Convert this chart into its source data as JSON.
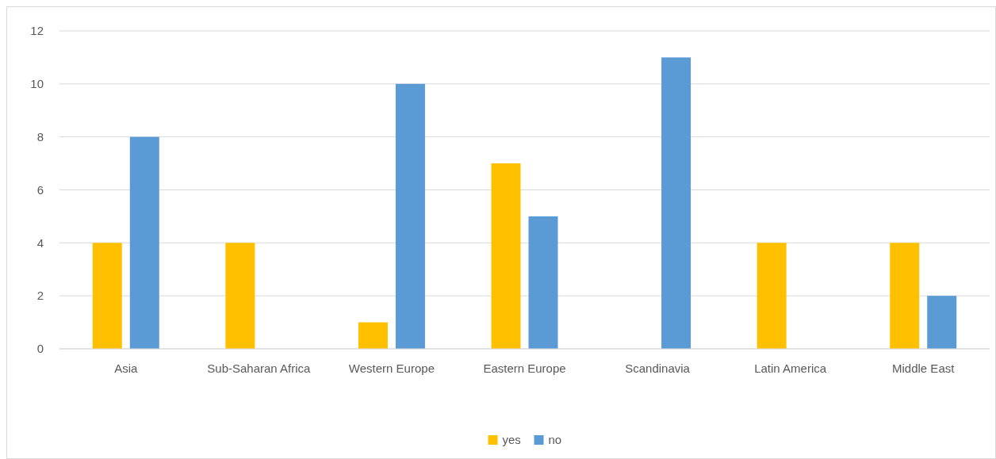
{
  "chart_data": {
    "type": "bar",
    "categories": [
      "Asia",
      "Sub-Saharan Africa",
      "Western Europe",
      "Eastern Europe",
      "Scandinavia",
      "Latin America",
      "Middle East"
    ],
    "series": [
      {
        "name": "yes",
        "color": "#ffc000",
        "values": [
          4,
          4,
          1,
          7,
          null,
          4,
          4
        ]
      },
      {
        "name": "no",
        "color": "#5b9bd5",
        "values": [
          8,
          null,
          10,
          5,
          11,
          null,
          2
        ]
      }
    ],
    "ylim": [
      0,
      12
    ],
    "yticks": [
      0,
      2,
      4,
      6,
      8,
      10,
      12
    ],
    "grid": "y",
    "legend": "bottom"
  }
}
